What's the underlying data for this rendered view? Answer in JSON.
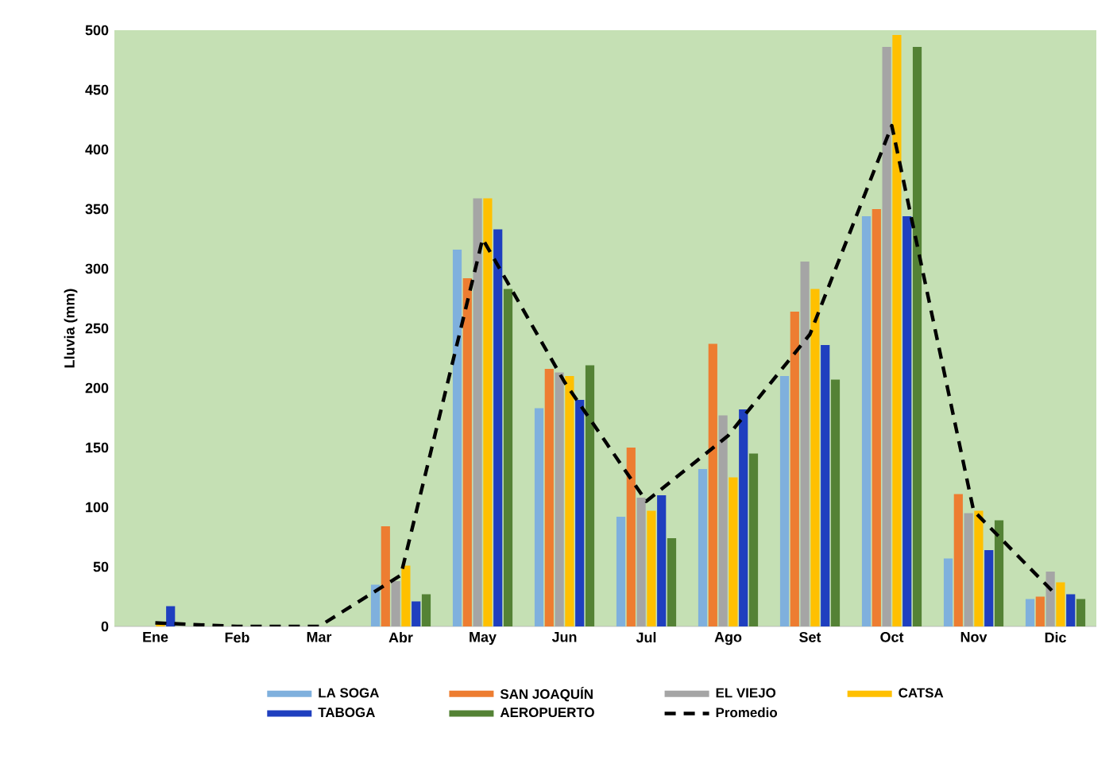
{
  "chart_data": {
    "type": "bar",
    "ylabel": "Lluvia (mm)",
    "categories": [
      "Ene",
      "Feb",
      "Mar",
      "Abr",
      "May",
      "Jun",
      "Jul",
      "Ago",
      "Set",
      "Oct",
      "Nov",
      "Dic"
    ],
    "series": [
      {
        "name": "LA SOGA",
        "color": "#7fb0dd",
        "values": [
          0,
          0,
          0,
          35,
          316,
          183,
          92,
          132,
          210,
          344,
          57,
          23
        ]
      },
      {
        "name": "SAN JOAQUÍN",
        "color": "#ed7d31",
        "values": [
          0,
          0,
          0,
          84,
          292,
          216,
          150,
          237,
          264,
          350,
          111,
          25
        ]
      },
      {
        "name": "EL VIEJO",
        "color": "#a5a5a5",
        "values": [
          0,
          0,
          0,
          38,
          359,
          213,
          108,
          177,
          306,
          486,
          95,
          46
        ]
      },
      {
        "name": "CATSA",
        "color": "#ffc000",
        "values": [
          2,
          0,
          0,
          51,
          359,
          210,
          97,
          125,
          283,
          496,
          97,
          37
        ]
      },
      {
        "name": "TABOGA",
        "color": "#1f3fbf",
        "values": [
          17,
          0,
          0,
          21,
          333,
          190,
          110,
          182,
          236,
          344,
          64,
          27
        ]
      },
      {
        "name": "AEROPUERTO",
        "color": "#548235",
        "values": [
          0,
          0,
          0,
          27,
          283,
          219,
          74,
          145,
          207,
          486,
          89,
          23
        ]
      },
      {
        "name": "Promedio",
        "color": "#000000",
        "type": "line",
        "line_style": "dashed",
        "values": [
          3,
          0,
          0,
          43,
          325,
          205,
          105,
          160,
          245,
          420,
          97,
          27
        ]
      }
    ],
    "ylim": [
      0,
      500
    ],
    "yticks": [
      0,
      50,
      100,
      150,
      200,
      250,
      300,
      350,
      400,
      450,
      500
    ],
    "legend": "bottom"
  }
}
